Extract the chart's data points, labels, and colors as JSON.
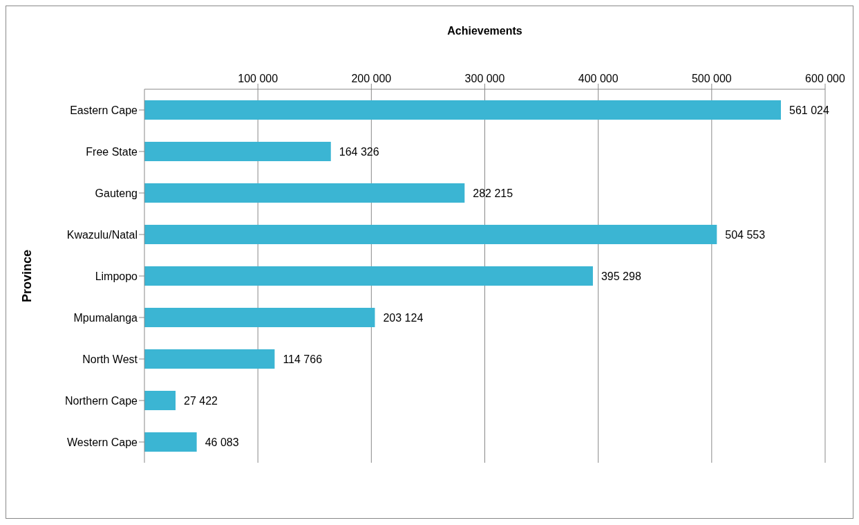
{
  "chart_data": {
    "type": "bar",
    "orientation": "horizontal",
    "xlabel": "Achievements",
    "ylabel": "Province",
    "categories": [
      "Eastern Cape",
      "Free State",
      "Gauteng",
      "Kwazulu/Natal",
      "Limpopo",
      "Mpumalanga",
      "North West",
      "Northern Cape",
      "Western Cape"
    ],
    "values": [
      561024,
      164326,
      282215,
      504553,
      395298,
      203124,
      114766,
      27422,
      46083
    ],
    "color": "#3bb5d3",
    "xlim": [
      0,
      600000
    ],
    "xticks": [
      {
        "value": 100000,
        "label": "100 000"
      },
      {
        "value": 200000,
        "label": "200 000"
      },
      {
        "value": 300000,
        "label": "300 000"
      },
      {
        "value": 400000,
        "label": "400 000"
      },
      {
        "value": 500000,
        "label": "500 000"
      },
      {
        "value": 600000,
        "label": "600 000"
      }
    ],
    "grid": "x",
    "data_labels": true,
    "legend": false
  }
}
